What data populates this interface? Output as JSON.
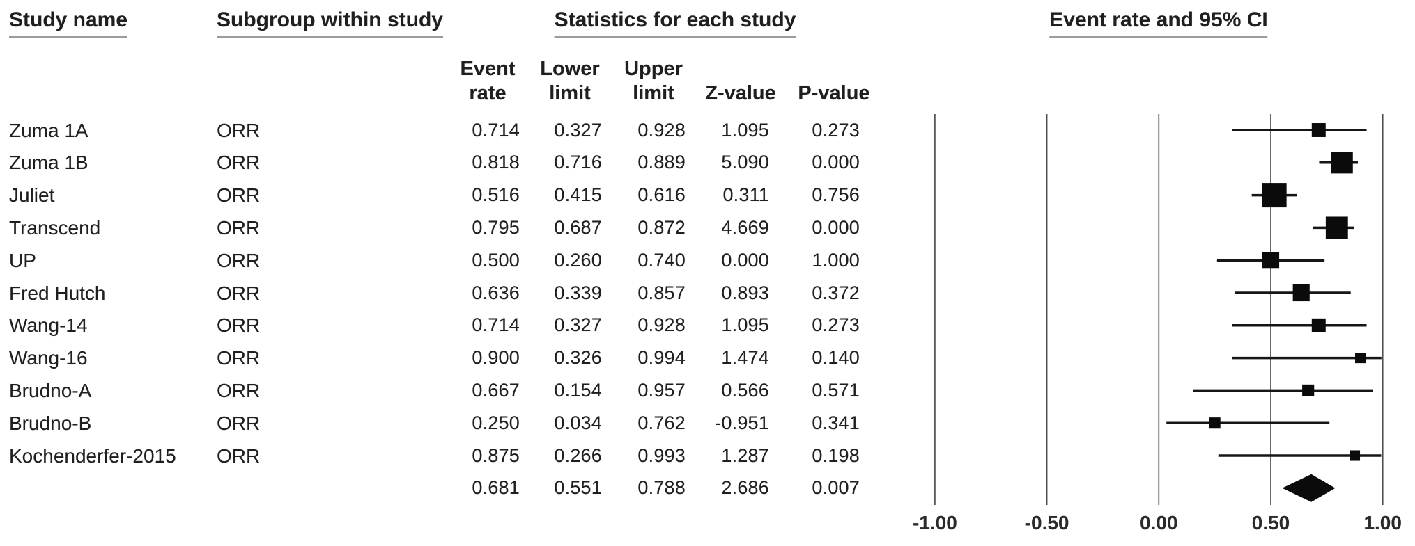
{
  "page": {
    "background": "#ffffff",
    "text_color": "#1f1f1f",
    "underline_color": "#9c9c9c",
    "marker_color": "#0b0b0b",
    "ci_line_color": "#161616",
    "gridline_color": "#4d4d4d"
  },
  "headers": {
    "study_name": "Study name",
    "subgroup": "Subgroup within study",
    "statistics": "Statistics for each study",
    "event_rate_ci": "Event rate and 95% CI"
  },
  "stat_columns": [
    {
      "line1": "Event",
      "line2": "rate"
    },
    {
      "line1": "Lower",
      "line2": "limit"
    },
    {
      "line1": "Upper",
      "line2": "limit"
    },
    {
      "line1": "",
      "line2": "Z-value"
    },
    {
      "line1": "",
      "line2": "P-value"
    }
  ],
  "chart_data": {
    "type": "scatter",
    "variant": "forest-plot-meta-analysis",
    "title": "Event rate and 95% CI",
    "legend": "none",
    "grid": "vertical-reference-lines-at-ticks",
    "x_axis": {
      "min": -1.0,
      "max": 1.0,
      "ticks": [
        -1.0,
        -0.5,
        0.0,
        0.5,
        1.0
      ],
      "tick_labels": [
        "-1.00",
        "-0.50",
        "0.00",
        "0.50",
        "1.00"
      ]
    },
    "rows": [
      {
        "study": "Zuma 1A",
        "subgroup": "ORR",
        "event_rate": 0.714,
        "lower_limit": 0.327,
        "upper_limit": 0.928,
        "z_value": 1.095,
        "p_value": 0.273,
        "marker": "square",
        "rel_weight": 0.57
      },
      {
        "study": "Zuma 1B",
        "subgroup": "ORR",
        "event_rate": 0.818,
        "lower_limit": 0.716,
        "upper_limit": 0.889,
        "z_value": 5.09,
        "p_value": 0.0,
        "marker": "square",
        "rel_weight": 0.89
      },
      {
        "study": "Juliet",
        "subgroup": "ORR",
        "event_rate": 0.516,
        "lower_limit": 0.415,
        "upper_limit": 0.616,
        "z_value": 0.311,
        "p_value": 0.756,
        "marker": "square",
        "rel_weight": 1.0
      },
      {
        "study": "Transcend",
        "subgroup": "ORR",
        "event_rate": 0.795,
        "lower_limit": 0.687,
        "upper_limit": 0.872,
        "z_value": 4.669,
        "p_value": 0.0,
        "marker": "square",
        "rel_weight": 0.91
      },
      {
        "study": "UP",
        "subgroup": "ORR",
        "event_rate": 0.5,
        "lower_limit": 0.26,
        "upper_limit": 0.74,
        "z_value": 0.0,
        "p_value": 1.0,
        "marker": "square",
        "rel_weight": 0.69
      },
      {
        "study": "Fred Hutch",
        "subgroup": "ORR",
        "event_rate": 0.636,
        "lower_limit": 0.339,
        "upper_limit": 0.857,
        "z_value": 0.893,
        "p_value": 0.372,
        "marker": "square",
        "rel_weight": 0.69
      },
      {
        "study": "Wang-14",
        "subgroup": "ORR",
        "event_rate": 0.714,
        "lower_limit": 0.327,
        "upper_limit": 0.928,
        "z_value": 1.095,
        "p_value": 0.273,
        "marker": "square",
        "rel_weight": 0.57
      },
      {
        "study": "Wang-16",
        "subgroup": "ORR",
        "event_rate": 0.9,
        "lower_limit": 0.326,
        "upper_limit": 0.994,
        "z_value": 1.474,
        "p_value": 0.14,
        "marker": "square",
        "rel_weight": 0.43
      },
      {
        "study": "Brudno-A",
        "subgroup": "ORR",
        "event_rate": 0.667,
        "lower_limit": 0.154,
        "upper_limit": 0.957,
        "z_value": 0.566,
        "p_value": 0.571,
        "marker": "square",
        "rel_weight": 0.49
      },
      {
        "study": "Brudno-B",
        "subgroup": "ORR",
        "event_rate": 0.25,
        "lower_limit": 0.034,
        "upper_limit": 0.762,
        "z_value": -0.951,
        "p_value": 0.341,
        "marker": "square",
        "rel_weight": 0.46
      },
      {
        "study": "Kochenderfer-2015",
        "subgroup": "ORR",
        "event_rate": 0.875,
        "lower_limit": 0.266,
        "upper_limit": 0.993,
        "z_value": 1.287,
        "p_value": 0.198,
        "marker": "square",
        "rel_weight": 0.43
      },
      {
        "study": "",
        "subgroup": "",
        "event_rate": 0.681,
        "lower_limit": 0.551,
        "upper_limit": 0.788,
        "z_value": 2.686,
        "p_value": 0.007,
        "marker": "diamond",
        "rel_weight": 1.0
      }
    ]
  }
}
